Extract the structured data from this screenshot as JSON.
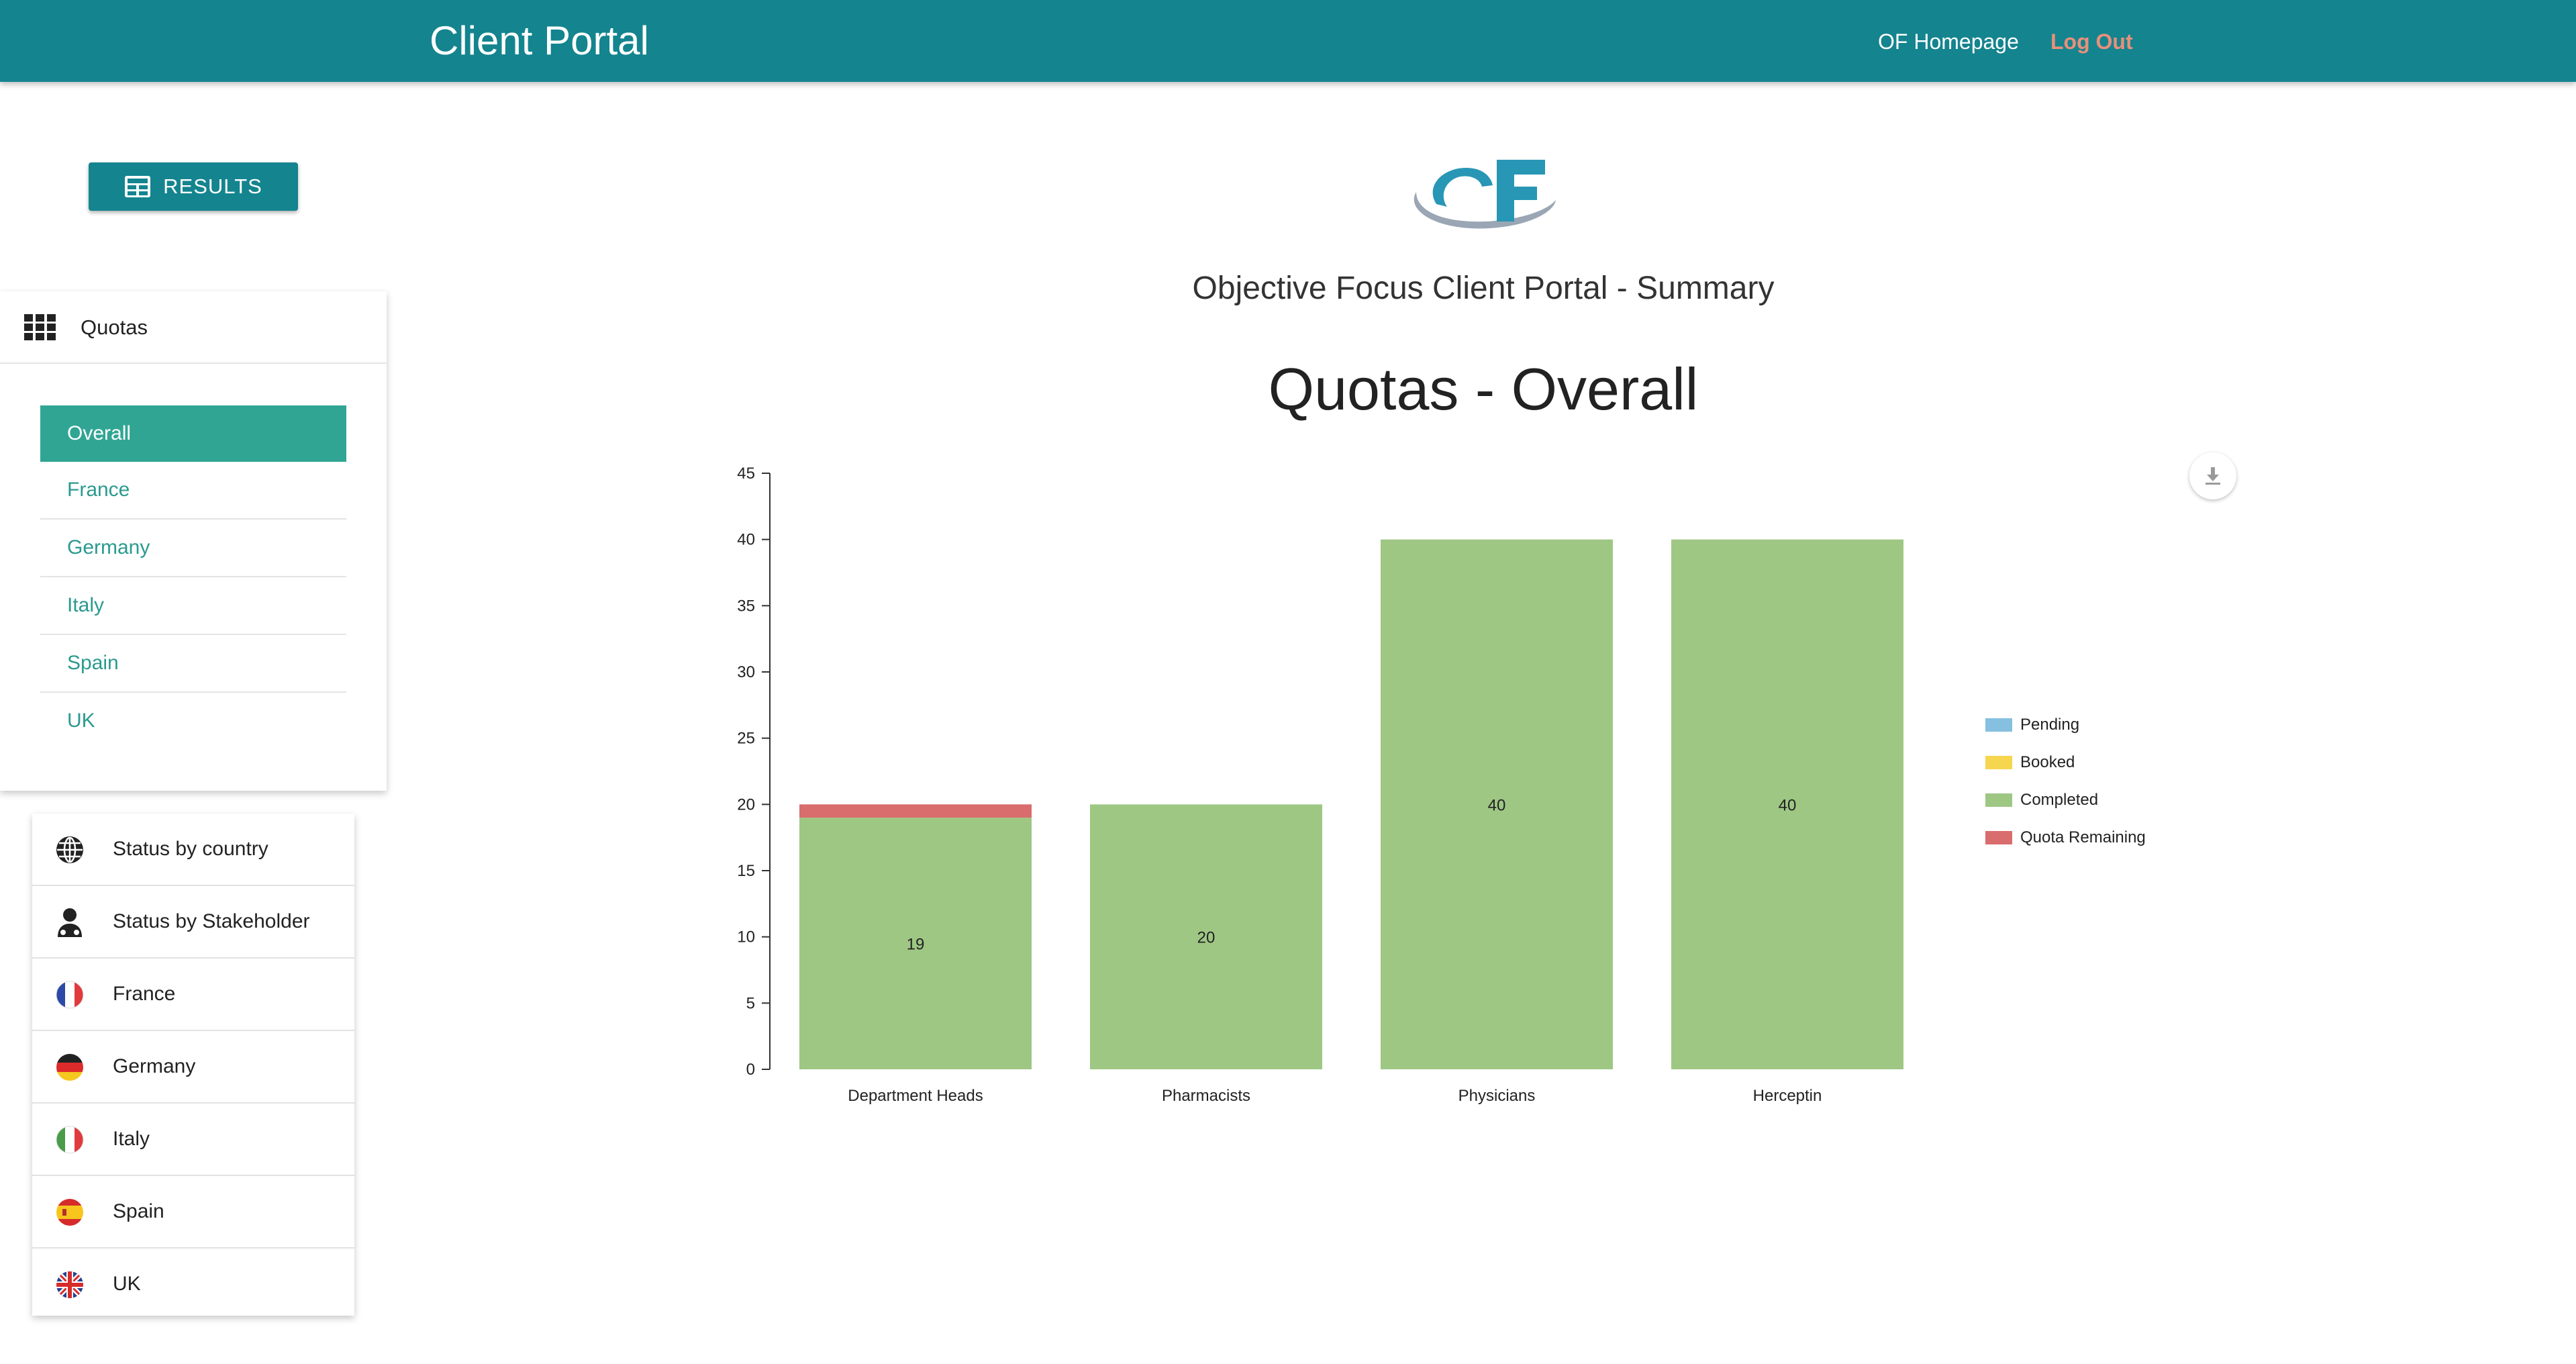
{
  "header": {
    "title": "Client Portal",
    "homepage_link": "OF Homepage",
    "logout_link": "Log Out"
  },
  "results_button": {
    "label": "RESULTS",
    "icon": "table-icon"
  },
  "quotas_panel": {
    "title": "Quotas",
    "icon": "grid-icon",
    "tabs": [
      {
        "label": "Overall",
        "active": true
      },
      {
        "label": "France"
      },
      {
        "label": "Germany"
      },
      {
        "label": "Italy"
      },
      {
        "label": "Spain"
      },
      {
        "label": "UK"
      }
    ]
  },
  "nav_list": [
    {
      "label": "Status by country",
      "icon": "globe-icon"
    },
    {
      "label": "Status by Stakeholder",
      "icon": "user-icon"
    },
    {
      "label": "France",
      "icon": "flag-france-icon"
    },
    {
      "label": "Germany",
      "icon": "flag-germany-icon"
    },
    {
      "label": "Italy",
      "icon": "flag-italy-icon"
    },
    {
      "label": "Spain",
      "icon": "flag-spain-icon"
    },
    {
      "label": "UK",
      "icon": "flag-uk-icon"
    }
  ],
  "main": {
    "subtitle": "Objective Focus Client Portal - Summary",
    "chart_title": "Quotas - Overall"
  },
  "colors": {
    "brand": "#14848f",
    "active_tab": "#31a594",
    "logout": "#e8907a"
  },
  "chart_data": {
    "type": "bar",
    "stacked": true,
    "title": "Quotas - Overall",
    "categories": [
      "Department Heads",
      "Pharmacists",
      "Physicians",
      "Herceptin"
    ],
    "series": [
      {
        "name": "Pending",
        "color": "#86c0e0",
        "values": [
          0,
          0,
          0,
          0
        ]
      },
      {
        "name": "Booked",
        "color": "#f6d54f",
        "values": [
          0,
          0,
          0,
          0
        ]
      },
      {
        "name": "Completed",
        "color": "#9ec784",
        "values": [
          19,
          20,
          40,
          40
        ]
      },
      {
        "name": "Quota Remaining",
        "color": "#d96c6c",
        "values": [
          1,
          0,
          0,
          0
        ]
      }
    ],
    "data_labels": [
      "19",
      "20",
      "40",
      "40"
    ],
    "ylim": [
      0,
      45
    ],
    "yticks": [
      0,
      5,
      10,
      15,
      20,
      25,
      30,
      35,
      40,
      45
    ],
    "xlabel": "",
    "ylabel": "",
    "grid": false,
    "legend_position": "right"
  }
}
